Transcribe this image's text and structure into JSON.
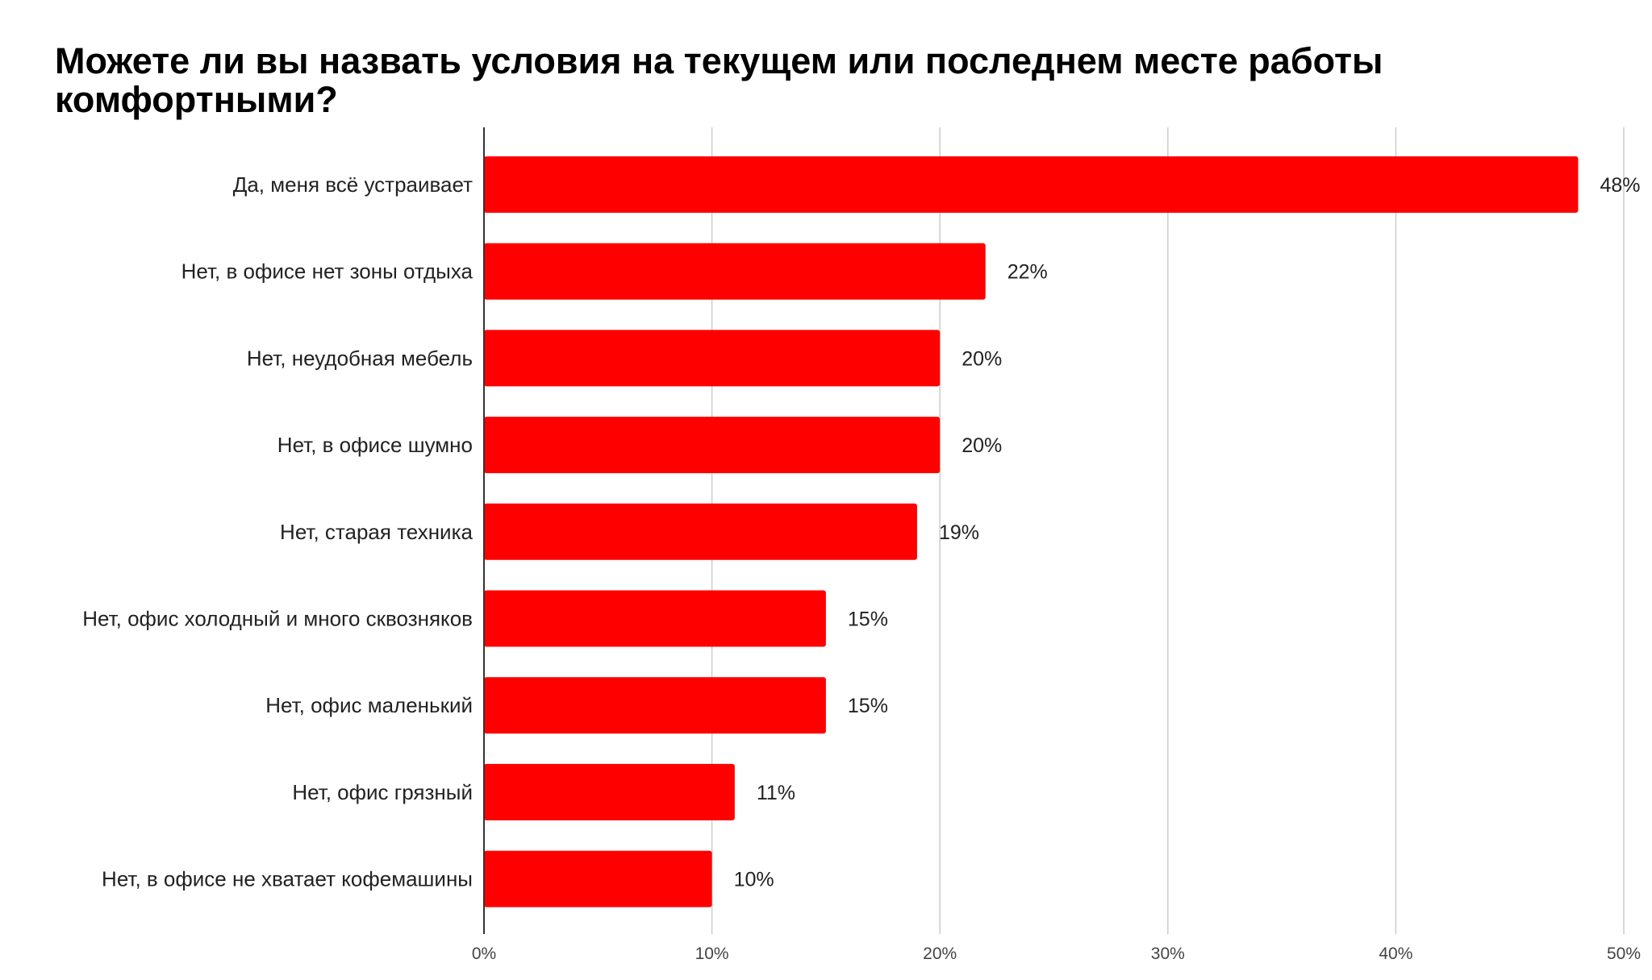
{
  "chart_data": {
    "type": "bar",
    "orientation": "horizontal",
    "title": "Можете ли вы назвать условия на текущем или последнем месте работы комфортными?",
    "categories": [
      "Да, меня всё устраивает",
      "Нет, в офисе нет зоны отдыха",
      "Нет, неудобная мебель",
      "Нет, в офисе шумно",
      "Нет, старая техника",
      "Нет, офис холодный и много сквозняков",
      "Нет, офис маленький",
      "Нет, офис грязный",
      "Нет, в офисе не хватает кофемашины"
    ],
    "values": [
      48,
      22,
      20,
      20,
      19,
      15,
      15,
      11,
      10
    ],
    "value_labels": [
      "48%",
      "22%",
      "20%",
      "20%",
      "19%",
      "15%",
      "15%",
      "11%",
      "10%"
    ],
    "xlim": [
      0,
      50
    ],
    "xticks": [
      0,
      10,
      20,
      30,
      40,
      50
    ],
    "xtick_labels": [
      "0%",
      "10%",
      "20%",
      "30%",
      "40%",
      "50%"
    ],
    "xlabel": "",
    "ylabel": "",
    "grid": "vertical",
    "bar_color": "#ff0000"
  }
}
